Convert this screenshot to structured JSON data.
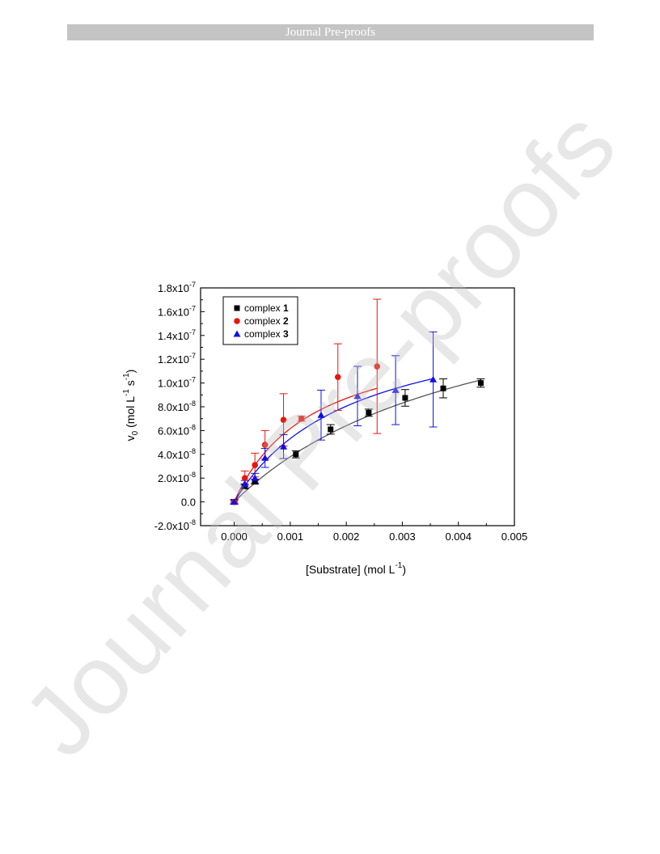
{
  "header": {
    "banner_text": "Journal Pre-proofs"
  },
  "watermark": {
    "text": "Journal Pre-proofs"
  },
  "chart_data": {
    "type": "scatter",
    "xlabel": {
      "main": "[Substrate] (mol L",
      "sup": "-1",
      "close": ")"
    },
    "ylabel": {
      "pre": "v",
      "sub": "0",
      "mid": " (mol L",
      "sup1": "-1",
      "s": " s",
      "sup2": "-1",
      "close": ")"
    },
    "xlim": [
      -0.0006,
      0.005
    ],
    "ylim": [
      -2e-08,
      1.8e-07
    ],
    "x_ticks": [
      {
        "value": 0.0,
        "label": "0.000"
      },
      {
        "value": 0.001,
        "label": "0.001"
      },
      {
        "value": 0.002,
        "label": "0.002"
      },
      {
        "value": 0.003,
        "label": "0.003"
      },
      {
        "value": 0.004,
        "label": "0.004"
      },
      {
        "value": 0.005,
        "label": "0.005"
      }
    ],
    "y_ticks": [
      {
        "value": -2e-08,
        "label": "-2.0x10",
        "exp": "-8"
      },
      {
        "value": 0.0,
        "label": "0.0",
        "exp": ""
      },
      {
        "value": 2e-08,
        "label": "2.0x10",
        "exp": "-8"
      },
      {
        "value": 4e-08,
        "label": "4.0x10",
        "exp": "-8"
      },
      {
        "value": 6e-08,
        "label": "6.0x10",
        "exp": "-8"
      },
      {
        "value": 8e-08,
        "label": "8.0x10",
        "exp": "-8"
      },
      {
        "value": 1e-07,
        "label": "1.0x10",
        "exp": "-7"
      },
      {
        "value": 1.2e-07,
        "label": "1.2x10",
        "exp": "-7"
      },
      {
        "value": 1.4e-07,
        "label": "1.4x10",
        "exp": "-7"
      },
      {
        "value": 1.6e-07,
        "label": "1.6x10",
        "exp": "-7"
      },
      {
        "value": 1.8e-07,
        "label": "1.8x10",
        "exp": "-7"
      }
    ],
    "legend_position": "top-left",
    "series": [
      {
        "name": "complex ",
        "name_bold": "1",
        "color": "#000000",
        "fit_color": "#555555",
        "marker": "square",
        "x": [
          0.0,
          0.000185,
          0.00037,
          0.0011,
          0.00172,
          0.0024,
          0.00305,
          0.00373,
          0.0044
        ],
        "y": [
          0.0,
          1.3e-08,
          1.7e-08,
          4e-08,
          6.1e-08,
          7.5e-08,
          8.75e-08,
          9.55e-08,
          1e-07
        ],
        "err": [
          1e-09,
          2e-09,
          2e-09,
          3e-09,
          4e-09,
          3e-09,
          7e-09,
          8e-09,
          3.5e-09
        ],
        "fit": {
          "vmax": 2.05e-07,
          "km": 0.0044,
          "xmax": 0.0044
        }
      },
      {
        "name": "complex ",
        "name_bold": "2",
        "color": "#e8160c",
        "fit_color": "#e8160c",
        "marker": "circle",
        "x": [
          0.0,
          0.00019,
          0.00037,
          0.00055,
          0.00088,
          0.0012,
          0.00185,
          0.00255
        ],
        "y": [
          0.0,
          2e-08,
          3.1e-08,
          4.8e-08,
          6.9e-08,
          7e-08,
          1.05e-07,
          1.14e-07
        ],
        "err": [
          2e-09,
          6e-09,
          1e-08,
          1.2e-08,
          2.2e-08,
          2e-09,
          2.8e-08,
          5.65e-08
        ],
        "fit": {
          "vmax": 1.48e-07,
          "km": 0.0014,
          "xmax": 0.00255
        }
      },
      {
        "name": "complex ",
        "name_bold": "3",
        "color": "#1010e8",
        "fit_color": "#1010e8",
        "marker": "triangle",
        "x": [
          0.0,
          0.00019,
          0.00037,
          0.00055,
          0.00088,
          0.00155,
          0.0022,
          0.00288,
          0.00355
        ],
        "y": [
          0.0,
          1.5e-08,
          2e-08,
          3.7e-08,
          4.65e-08,
          7.3e-08,
          8.9e-08,
          9.4e-08,
          1.03e-07
        ],
        "err": [
          2e-09,
          3e-09,
          4e-09,
          8e-09,
          1e-08,
          2.1e-08,
          2.5e-08,
          2.9e-08,
          4e-08
        ],
        "fit": {
          "vmax": 1.65e-07,
          "km": 0.0021,
          "xmax": 0.00355
        }
      }
    ]
  }
}
